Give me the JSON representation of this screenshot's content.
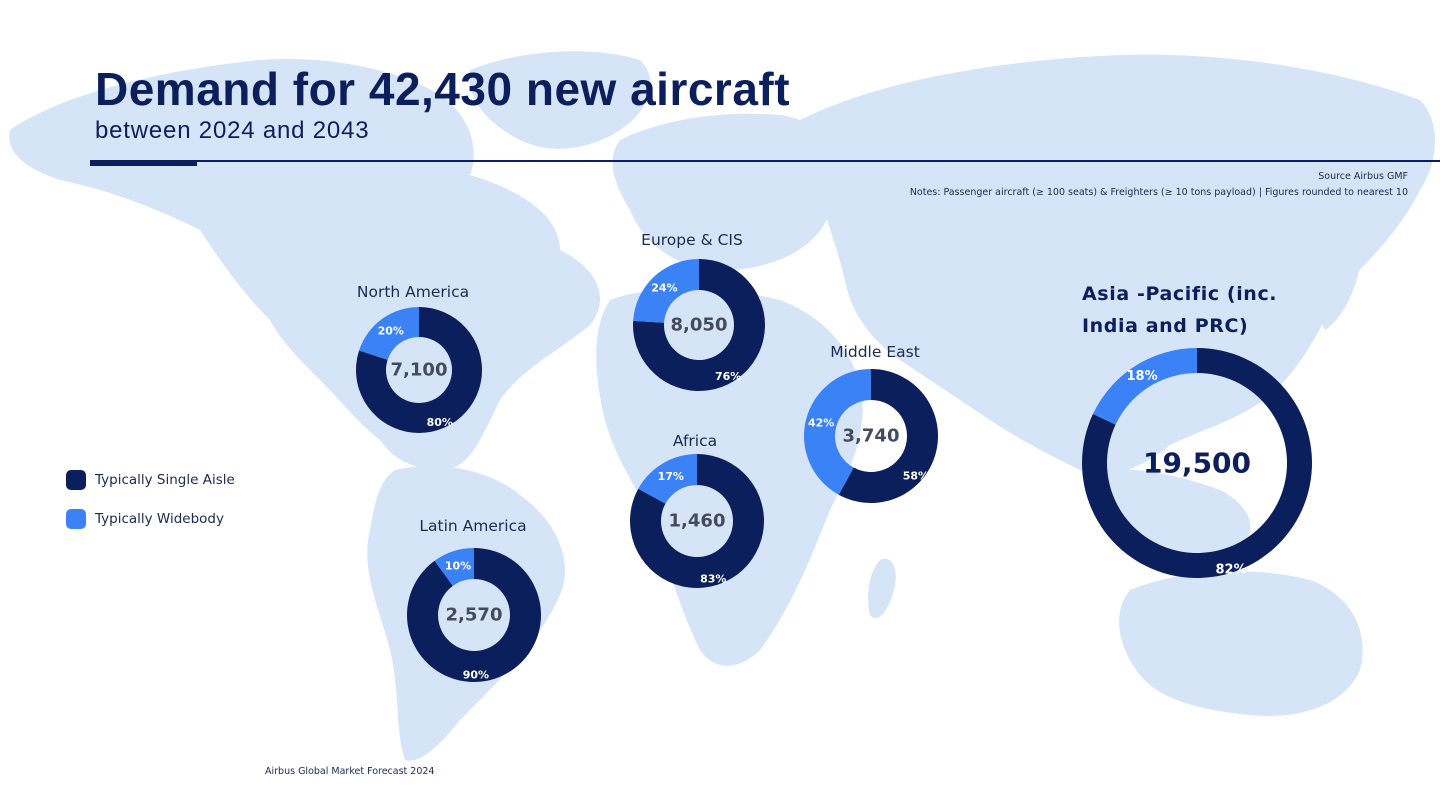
{
  "header": {
    "title": "Demand for 42,430 new aircraft",
    "subtitle": "between 2024 and 2043"
  },
  "source": "Source Airbus GMF",
  "notes": "Notes: Passenger aircraft (≥ 100 seats) & Freighters (≥ 10 tons payload) | Figures rounded to nearest 10",
  "footer": "Airbus Global Market Forecast 2024",
  "colors": {
    "single_aisle": "#0b1f5c",
    "widebody": "#3b82f6",
    "map": "#d6e4f7",
    "text_dark": "#0b1f5c"
  },
  "legend": [
    {
      "label": "Typically Single Aisle",
      "color": "#0b1f5c"
    },
    {
      "label": "Typically Widebody",
      "color": "#3b82f6"
    }
  ],
  "chart_data": [
    {
      "type": "pie",
      "region": "North America",
      "total": "7,100",
      "series": [
        {
          "name": "Typically Single Aisle",
          "value": 80,
          "label": "80%"
        },
        {
          "name": "Typically Widebody",
          "value": 20,
          "label": "20%"
        }
      ]
    },
    {
      "type": "pie",
      "region": "Europe & CIS",
      "total": "8,050",
      "series": [
        {
          "name": "Typically Single Aisle",
          "value": 76,
          "label": "76%"
        },
        {
          "name": "Typically Widebody",
          "value": 24,
          "label": "24%"
        }
      ]
    },
    {
      "type": "pie",
      "region": "Middle East",
      "total": "3,740",
      "series": [
        {
          "name": "Typically Single Aisle",
          "value": 58,
          "label": "58%"
        },
        {
          "name": "Typically Widebody",
          "value": 42,
          "label": "42%"
        }
      ]
    },
    {
      "type": "pie",
      "region": "Africa",
      "total": "1,460",
      "series": [
        {
          "name": "Typically Single Aisle",
          "value": 83,
          "label": "83%"
        },
        {
          "name": "Typically Widebody",
          "value": 17,
          "label": "17%"
        }
      ]
    },
    {
      "type": "pie",
      "region": "Latin America",
      "total": "2,570",
      "series": [
        {
          "name": "Typically Single Aisle",
          "value": 90,
          "label": "90%"
        },
        {
          "name": "Typically Widebody",
          "value": 10,
          "label": "10%"
        }
      ]
    },
    {
      "type": "pie",
      "region": "Asia -Pacific (inc. India and PRC)",
      "total": "19,500",
      "series": [
        {
          "name": "Typically Single Aisle",
          "value": 82,
          "label": "82%"
        },
        {
          "name": "Typically Widebody",
          "value": 18,
          "label": "18%"
        }
      ]
    }
  ]
}
